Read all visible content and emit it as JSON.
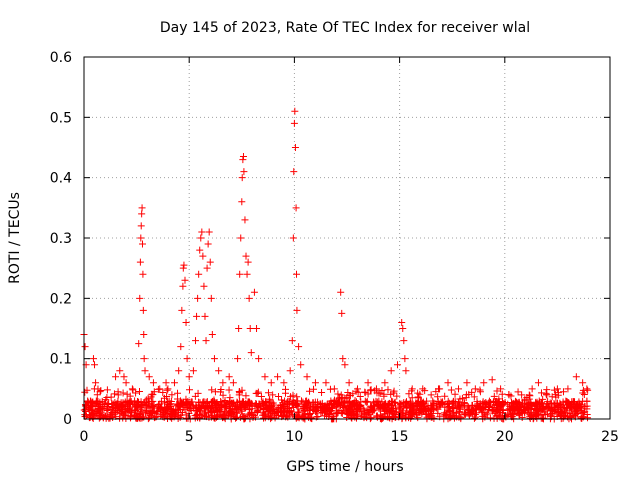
{
  "chart_data": {
    "type": "scatter",
    "title": "Day 145 of 2023, Rate Of TEC Index for receiver wlal",
    "xlabel": "GPS time / hours",
    "ylabel": "ROTI / TECUs",
    "xlim": [
      0,
      25
    ],
    "ylim": [
      0,
      0.6
    ],
    "xticks": [
      0,
      5,
      10,
      15,
      20,
      25
    ],
    "xtick_labels": [
      "0",
      "5",
      "10",
      "15",
      "20",
      "25"
    ],
    "yticks": [
      0,
      0.1,
      0.2,
      0.3,
      0.4,
      0.5,
      0.6
    ],
    "ytick_labels": [
      "0",
      "0.1",
      "0.2",
      "0.3",
      "0.4",
      "0.5",
      "0.6"
    ],
    "grid": true,
    "marker": "plus",
    "series": [
      {
        "name": "ROTI",
        "color": "#ff0000",
        "points": [
          [
            0.0,
            0.14
          ],
          [
            0.05,
            0.12
          ],
          [
            0.1,
            0.09
          ],
          [
            0.45,
            0.1
          ],
          [
            0.5,
            0.09
          ],
          [
            0.55,
            0.06
          ],
          [
            1.5,
            0.07
          ],
          [
            1.7,
            0.08
          ],
          [
            1.9,
            0.07
          ],
          [
            2.0,
            0.06
          ],
          [
            2.3,
            0.05
          ],
          [
            2.6,
            0.125
          ],
          [
            2.65,
            0.2
          ],
          [
            2.68,
            0.26
          ],
          [
            2.7,
            0.3
          ],
          [
            2.72,
            0.32
          ],
          [
            2.74,
            0.34
          ],
          [
            2.76,
            0.35
          ],
          [
            2.78,
            0.29
          ],
          [
            2.8,
            0.24
          ],
          [
            2.82,
            0.18
          ],
          [
            2.84,
            0.14
          ],
          [
            2.86,
            0.1
          ],
          [
            2.9,
            0.08
          ],
          [
            3.1,
            0.07
          ],
          [
            3.3,
            0.06
          ],
          [
            3.6,
            0.05
          ],
          [
            3.9,
            0.06
          ],
          [
            4.3,
            0.06
          ],
          [
            4.5,
            0.08
          ],
          [
            4.6,
            0.12
          ],
          [
            4.65,
            0.18
          ],
          [
            4.7,
            0.22
          ],
          [
            4.72,
            0.25
          ],
          [
            4.75,
            0.255
          ],
          [
            4.8,
            0.23
          ],
          [
            4.85,
            0.16
          ],
          [
            4.9,
            0.1
          ],
          [
            5.0,
            0.07
          ],
          [
            5.2,
            0.08
          ],
          [
            5.3,
            0.13
          ],
          [
            5.35,
            0.17
          ],
          [
            5.4,
            0.2
          ],
          [
            5.45,
            0.24
          ],
          [
            5.5,
            0.28
          ],
          [
            5.55,
            0.3
          ],
          [
            5.6,
            0.31
          ],
          [
            5.65,
            0.27
          ],
          [
            5.7,
            0.22
          ],
          [
            5.75,
            0.17
          ],
          [
            5.8,
            0.13
          ],
          [
            5.85,
            0.25
          ],
          [
            5.9,
            0.29
          ],
          [
            5.95,
            0.31
          ],
          [
            6.0,
            0.26
          ],
          [
            6.05,
            0.2
          ],
          [
            6.1,
            0.14
          ],
          [
            6.2,
            0.1
          ],
          [
            6.4,
            0.08
          ],
          [
            6.6,
            0.06
          ],
          [
            6.9,
            0.07
          ],
          [
            7.1,
            0.06
          ],
          [
            7.3,
            0.1
          ],
          [
            7.35,
            0.15
          ],
          [
            7.4,
            0.24
          ],
          [
            7.45,
            0.3
          ],
          [
            7.5,
            0.36
          ],
          [
            7.52,
            0.4
          ],
          [
            7.55,
            0.43
          ],
          [
            7.58,
            0.435
          ],
          [
            7.6,
            0.41
          ],
          [
            7.65,
            0.33
          ],
          [
            7.7,
            0.27
          ],
          [
            7.75,
            0.24
          ],
          [
            7.8,
            0.26
          ],
          [
            7.85,
            0.2
          ],
          [
            7.9,
            0.15
          ],
          [
            7.95,
            0.11
          ],
          [
            8.1,
            0.21
          ],
          [
            8.2,
            0.15
          ],
          [
            8.3,
            0.1
          ],
          [
            8.6,
            0.07
          ],
          [
            8.9,
            0.06
          ],
          [
            9.2,
            0.07
          ],
          [
            9.5,
            0.06
          ],
          [
            9.8,
            0.08
          ],
          [
            9.9,
            0.13
          ],
          [
            9.95,
            0.3
          ],
          [
            9.97,
            0.41
          ],
          [
            10.0,
            0.49
          ],
          [
            10.02,
            0.51
          ],
          [
            10.05,
            0.45
          ],
          [
            10.08,
            0.35
          ],
          [
            10.1,
            0.24
          ],
          [
            10.12,
            0.18
          ],
          [
            10.2,
            0.12
          ],
          [
            10.3,
            0.09
          ],
          [
            10.6,
            0.07
          ],
          [
            11.0,
            0.06
          ],
          [
            11.5,
            0.06
          ],
          [
            11.9,
            0.05
          ],
          [
            12.2,
            0.21
          ],
          [
            12.25,
            0.175
          ],
          [
            12.3,
            0.1
          ],
          [
            12.4,
            0.09
          ],
          [
            12.6,
            0.06
          ],
          [
            13.0,
            0.05
          ],
          [
            13.5,
            0.06
          ],
          [
            13.9,
            0.05
          ],
          [
            14.3,
            0.06
          ],
          [
            14.6,
            0.08
          ],
          [
            14.9,
            0.09
          ],
          [
            15.1,
            0.16
          ],
          [
            15.15,
            0.15
          ],
          [
            15.2,
            0.13
          ],
          [
            15.25,
            0.1
          ],
          [
            15.3,
            0.08
          ],
          [
            15.6,
            0.05
          ],
          [
            16.1,
            0.05
          ],
          [
            16.5,
            0.04
          ],
          [
            16.9,
            0.05
          ],
          [
            17.3,
            0.06
          ],
          [
            17.8,
            0.05
          ],
          [
            18.2,
            0.06
          ],
          [
            18.6,
            0.05
          ],
          [
            19.0,
            0.06
          ],
          [
            19.4,
            0.065
          ],
          [
            19.8,
            0.05
          ],
          [
            20.2,
            0.04
          ],
          [
            20.8,
            0.04
          ],
          [
            21.3,
            0.05
          ],
          [
            21.6,
            0.06
          ],
          [
            22.0,
            0.04
          ],
          [
            22.5,
            0.05
          ],
          [
            23.0,
            0.05
          ],
          [
            23.4,
            0.07
          ],
          [
            23.7,
            0.06
          ],
          [
            23.9,
            0.05
          ]
        ]
      }
    ],
    "noise_floor": {
      "x_range": [
        0,
        24
      ],
      "y_typical": 0.015,
      "y_max": 0.05
    }
  }
}
